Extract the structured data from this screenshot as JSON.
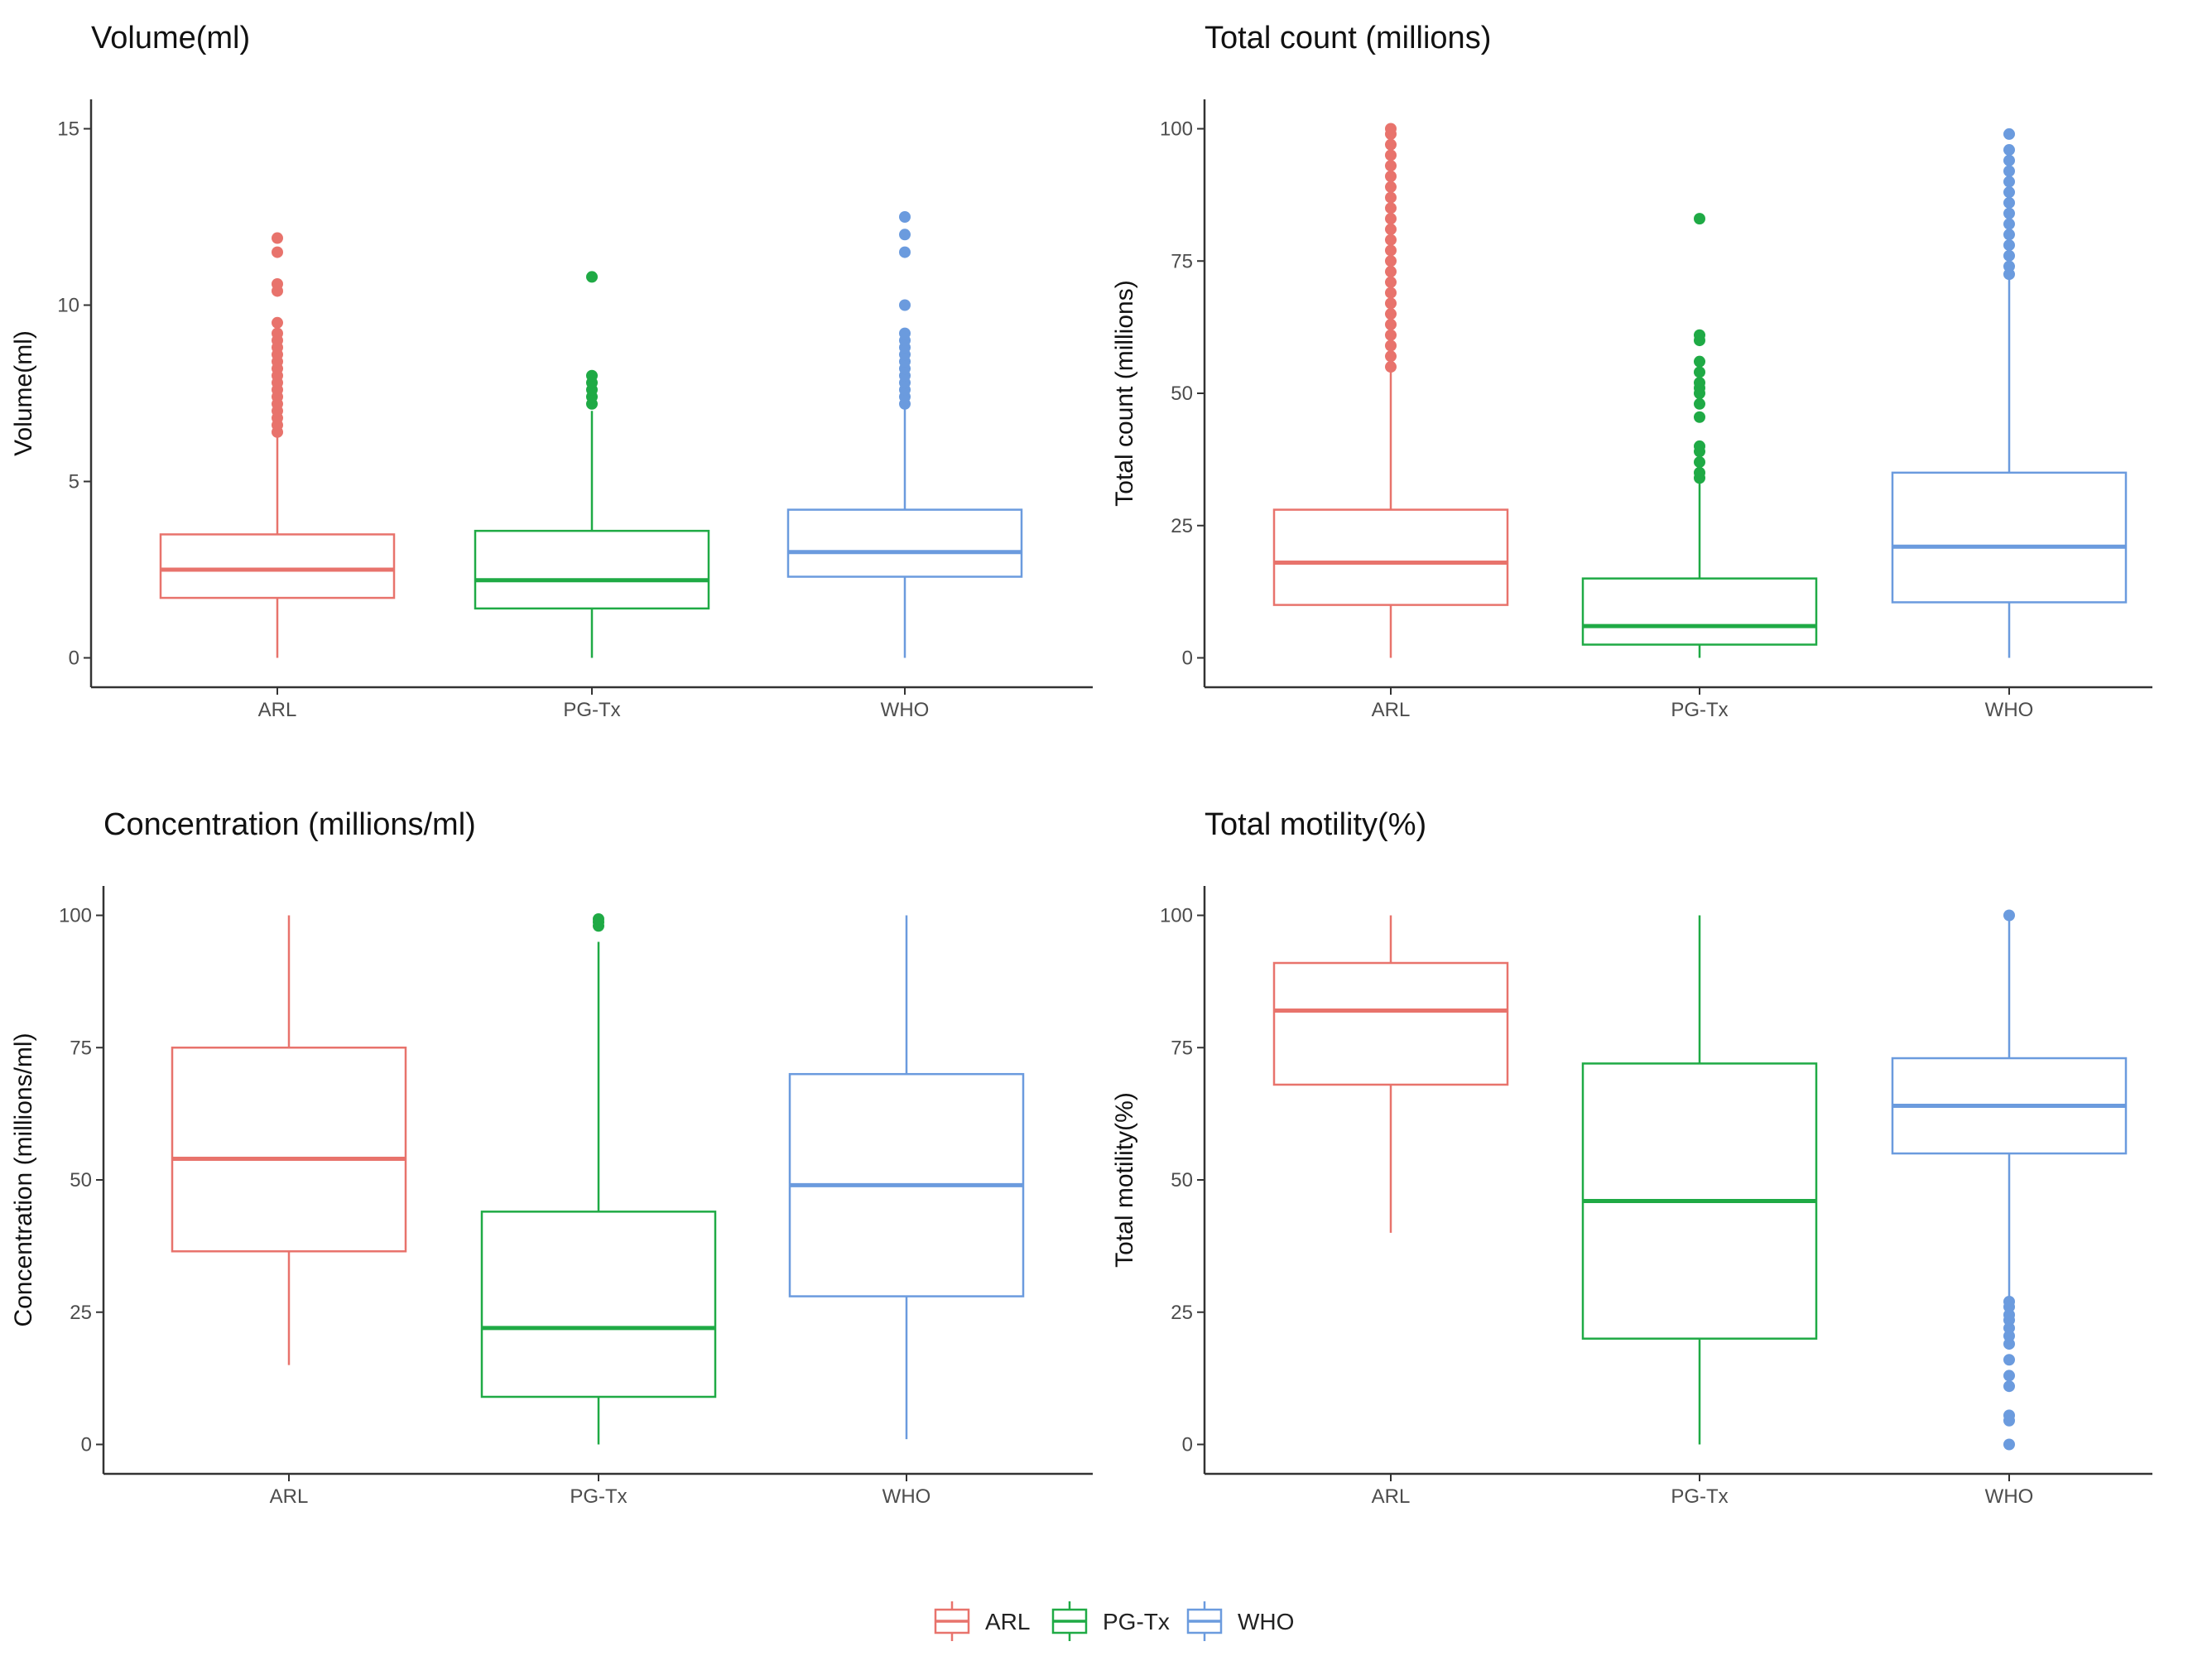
{
  "colors": {
    "ARL": "#E8736C",
    "PG-Tx": "#1FAA45",
    "WHO": "#6B9BDE"
  },
  "chart_data": [
    {
      "type": "box",
      "title": "Volume(ml)",
      "ylabel": "Volume(ml)",
      "xlabel": "",
      "categories": [
        "ARL",
        "PG-Tx",
        "WHO"
      ],
      "ylim": [
        0,
        15
      ],
      "yticks": [
        0,
        5,
        10,
        15
      ],
      "yticklabels": [
        "0",
        "5",
        "10",
        "15"
      ],
      "boxes": [
        {
          "group": "ARL",
          "min": 0,
          "q1": 1.7,
          "median": 2.5,
          "q3": 3.5,
          "max": 6.3,
          "outliers": [
            6.4,
            6.6,
            6.8,
            7.0,
            7.2,
            7.4,
            7.6,
            7.8,
            8.0,
            8.2,
            8.4,
            8.6,
            8.8,
            9.0,
            9.2,
            9.5,
            10.4,
            10.6,
            11.5,
            11.9
          ]
        },
        {
          "group": "PG-Tx",
          "min": 0,
          "q1": 1.4,
          "median": 2.2,
          "q3": 3.6,
          "max": 7.0,
          "outliers": [
            7.2,
            7.4,
            7.6,
            7.8,
            8.0,
            10.8
          ]
        },
        {
          "group": "WHO",
          "min": 0,
          "q1": 2.3,
          "median": 3.0,
          "q3": 4.2,
          "max": 7.1,
          "outliers": [
            7.2,
            7.4,
            7.6,
            7.8,
            8.0,
            8.2,
            8.4,
            8.6,
            8.8,
            9.0,
            9.2,
            10.0,
            11.5,
            12.0,
            12.5
          ]
        }
      ]
    },
    {
      "type": "box",
      "title": "Total count (millions)",
      "ylabel": "Total count (millions)",
      "xlabel": "",
      "categories": [
        "ARL",
        "PG-Tx",
        "WHO"
      ],
      "ylim": [
        0,
        100
      ],
      "yticks": [
        0,
        25,
        50,
        75,
        100
      ],
      "yticklabels": [
        "0",
        "25",
        "50",
        "75",
        "100"
      ],
      "boxes": [
        {
          "group": "ARL",
          "min": 0,
          "q1": 10,
          "median": 18,
          "q3": 28,
          "max": 55,
          "outliers": [
            55,
            57,
            59,
            61,
            63,
            65,
            67,
            69,
            71,
            73,
            75,
            77,
            79,
            81,
            83,
            85,
            87,
            89,
            91,
            93,
            95,
            97,
            99,
            100
          ]
        },
        {
          "group": "PG-Tx",
          "min": 0,
          "q1": 2.5,
          "median": 6,
          "q3": 15,
          "max": 33,
          "outliers": [
            34,
            35,
            37,
            39,
            40,
            45.5,
            48,
            50,
            51,
            52,
            54,
            56,
            60,
            61,
            83
          ]
        },
        {
          "group": "WHO",
          "min": 0,
          "q1": 10.5,
          "median": 21,
          "q3": 35,
          "max": 72,
          "outliers": [
            72.5,
            74,
            76,
            78,
            80,
            82,
            84,
            86,
            88,
            90,
            92,
            94,
            96,
            99
          ]
        }
      ]
    },
    {
      "type": "box",
      "title": "Concentration (millions/ml)",
      "ylabel": "Concentration (millions/ml)",
      "xlabel": "",
      "categories": [
        "ARL",
        "PG-Tx",
        "WHO"
      ],
      "ylim": [
        0,
        100
      ],
      "yticks": [
        0,
        25,
        50,
        75,
        100
      ],
      "yticklabels": [
        "0",
        "25",
        "50",
        "75",
        "100"
      ],
      "boxes": [
        {
          "group": "ARL",
          "min": 15,
          "q1": 36.5,
          "median": 54,
          "q3": 75,
          "max": 100,
          "outliers": []
        },
        {
          "group": "PG-Tx",
          "min": 0,
          "q1": 9,
          "median": 22,
          "q3": 44,
          "max": 95,
          "outliers": [
            98,
            98.7,
            99.3
          ]
        },
        {
          "group": "WHO",
          "min": 1,
          "q1": 28,
          "median": 49,
          "q3": 70,
          "max": 100,
          "outliers": []
        }
      ]
    },
    {
      "type": "box",
      "title": "Total motility(%)",
      "ylabel": "Total motility(%)",
      "xlabel": "",
      "categories": [
        "ARL",
        "PG-Tx",
        "WHO"
      ],
      "ylim": [
        0,
        100
      ],
      "yticks": [
        0,
        25,
        50,
        75,
        100
      ],
      "yticklabels": [
        "0",
        "25",
        "50",
        "75",
        "100"
      ],
      "boxes": [
        {
          "group": "ARL",
          "min": 40,
          "q1": 68,
          "median": 82,
          "q3": 91,
          "max": 100,
          "outliers": []
        },
        {
          "group": "PG-Tx",
          "min": 0,
          "q1": 20,
          "median": 46,
          "q3": 72,
          "max": 100,
          "outliers": []
        },
        {
          "group": "WHO",
          "min": 28,
          "q1": 55,
          "median": 64,
          "q3": 73,
          "max": 100,
          "outliers": [
            0,
            4.5,
            5.5,
            11,
            13,
            16,
            19,
            20.5,
            22,
            23.5,
            24.5,
            26,
            27,
            100
          ]
        }
      ]
    }
  ],
  "legend": {
    "position": "bottom",
    "items": [
      {
        "label": "ARL"
      },
      {
        "label": "PG-Tx"
      },
      {
        "label": "WHO"
      }
    ]
  }
}
